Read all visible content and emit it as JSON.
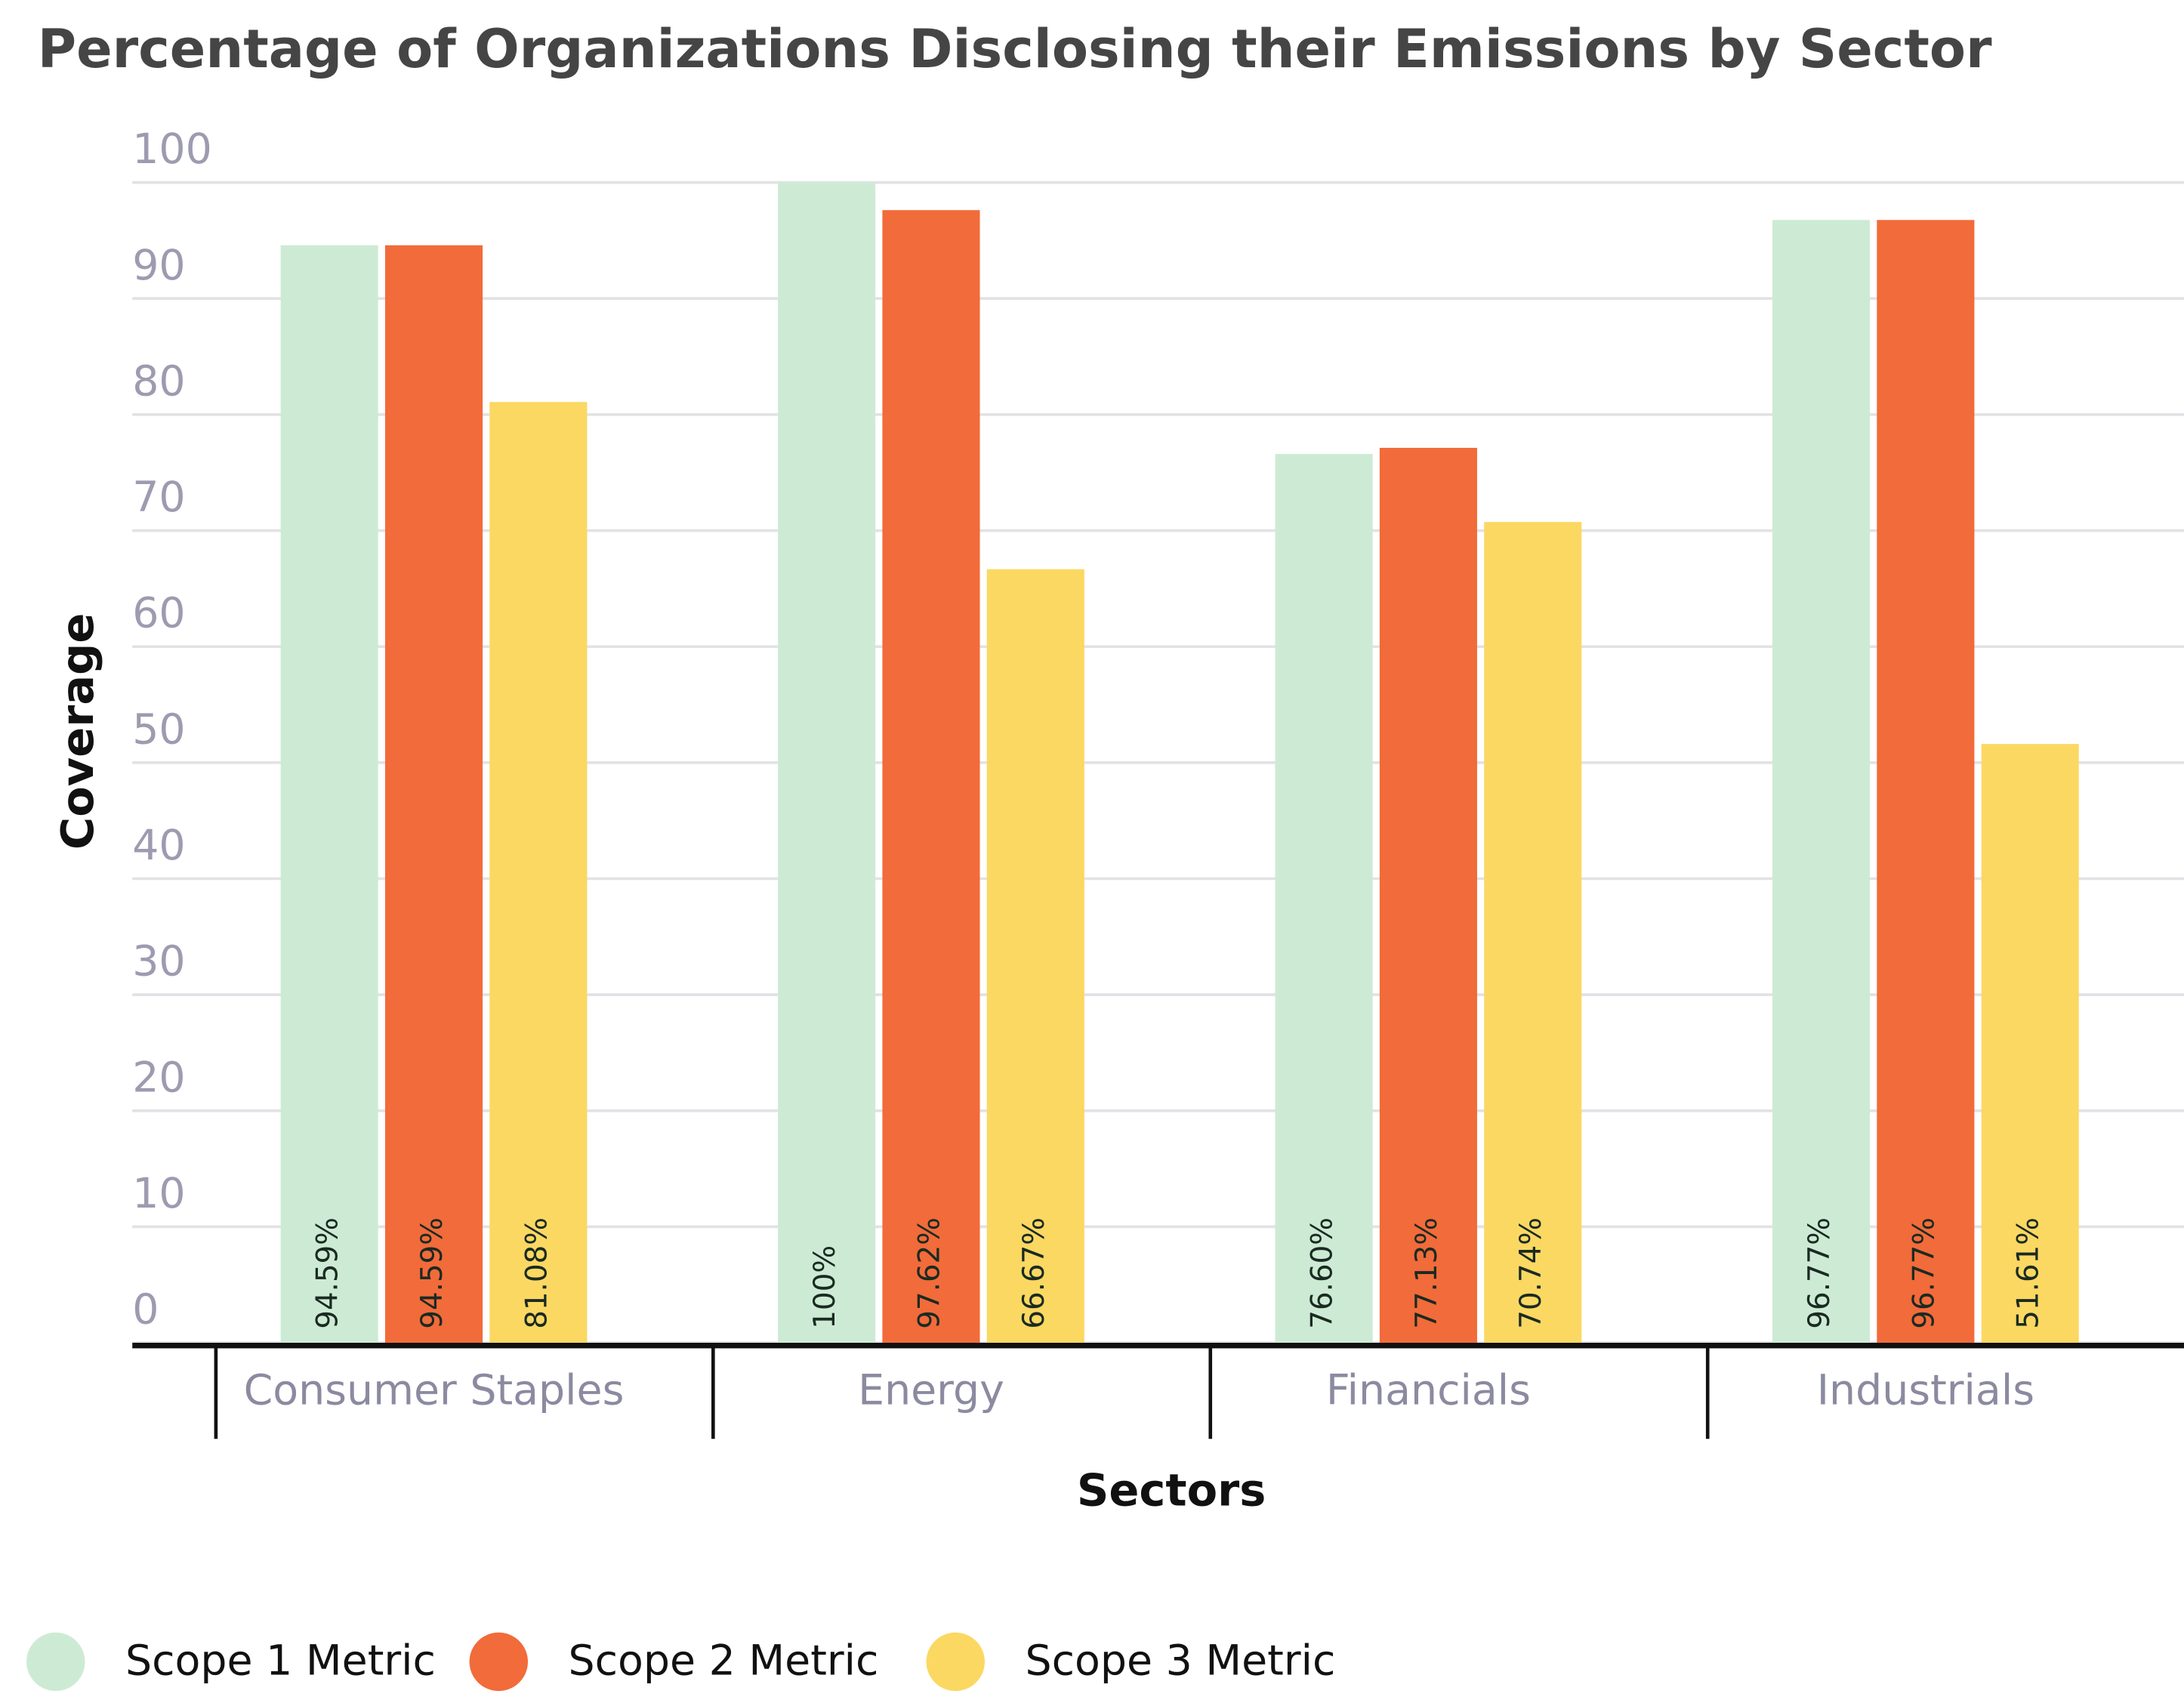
{
  "chart_data": {
    "type": "bar",
    "title": "Percentage of Organizations Disclosing their Emissions by Sector",
    "x_label": "Sectors",
    "y_label": "Coverage",
    "categories": [
      "Consumer Staples",
      "Energy",
      "Financials",
      "Industrials"
    ],
    "series": [
      {
        "name": "Scope 1 Metric",
        "color": "#cdebd4",
        "values": [
          94.59,
          100,
          76.6,
          96.77
        ],
        "value_labels": [
          "94.59%",
          "100%",
          "76.60%",
          "96.77%"
        ]
      },
      {
        "name": "Scope 2 Metric",
        "color": "#f26b3a",
        "values": [
          94.59,
          97.62,
          77.13,
          96.77
        ],
        "value_labels": [
          "94.59%",
          "97.62%",
          "77.13%",
          "96.77%"
        ]
      },
      {
        "name": "Scope 3 Metric",
        "color": "#fbd862",
        "values": [
          81.08,
          66.67,
          70.74,
          51.61
        ],
        "value_labels": [
          "81.08%",
          "66.67%",
          "70.74%",
          "51.61%"
        ]
      }
    ],
    "ylim": [
      0,
      100
    ],
    "yticks": [
      0,
      10,
      20,
      30,
      40,
      50,
      60,
      70,
      80,
      90,
      100
    ],
    "grid": true
  }
}
